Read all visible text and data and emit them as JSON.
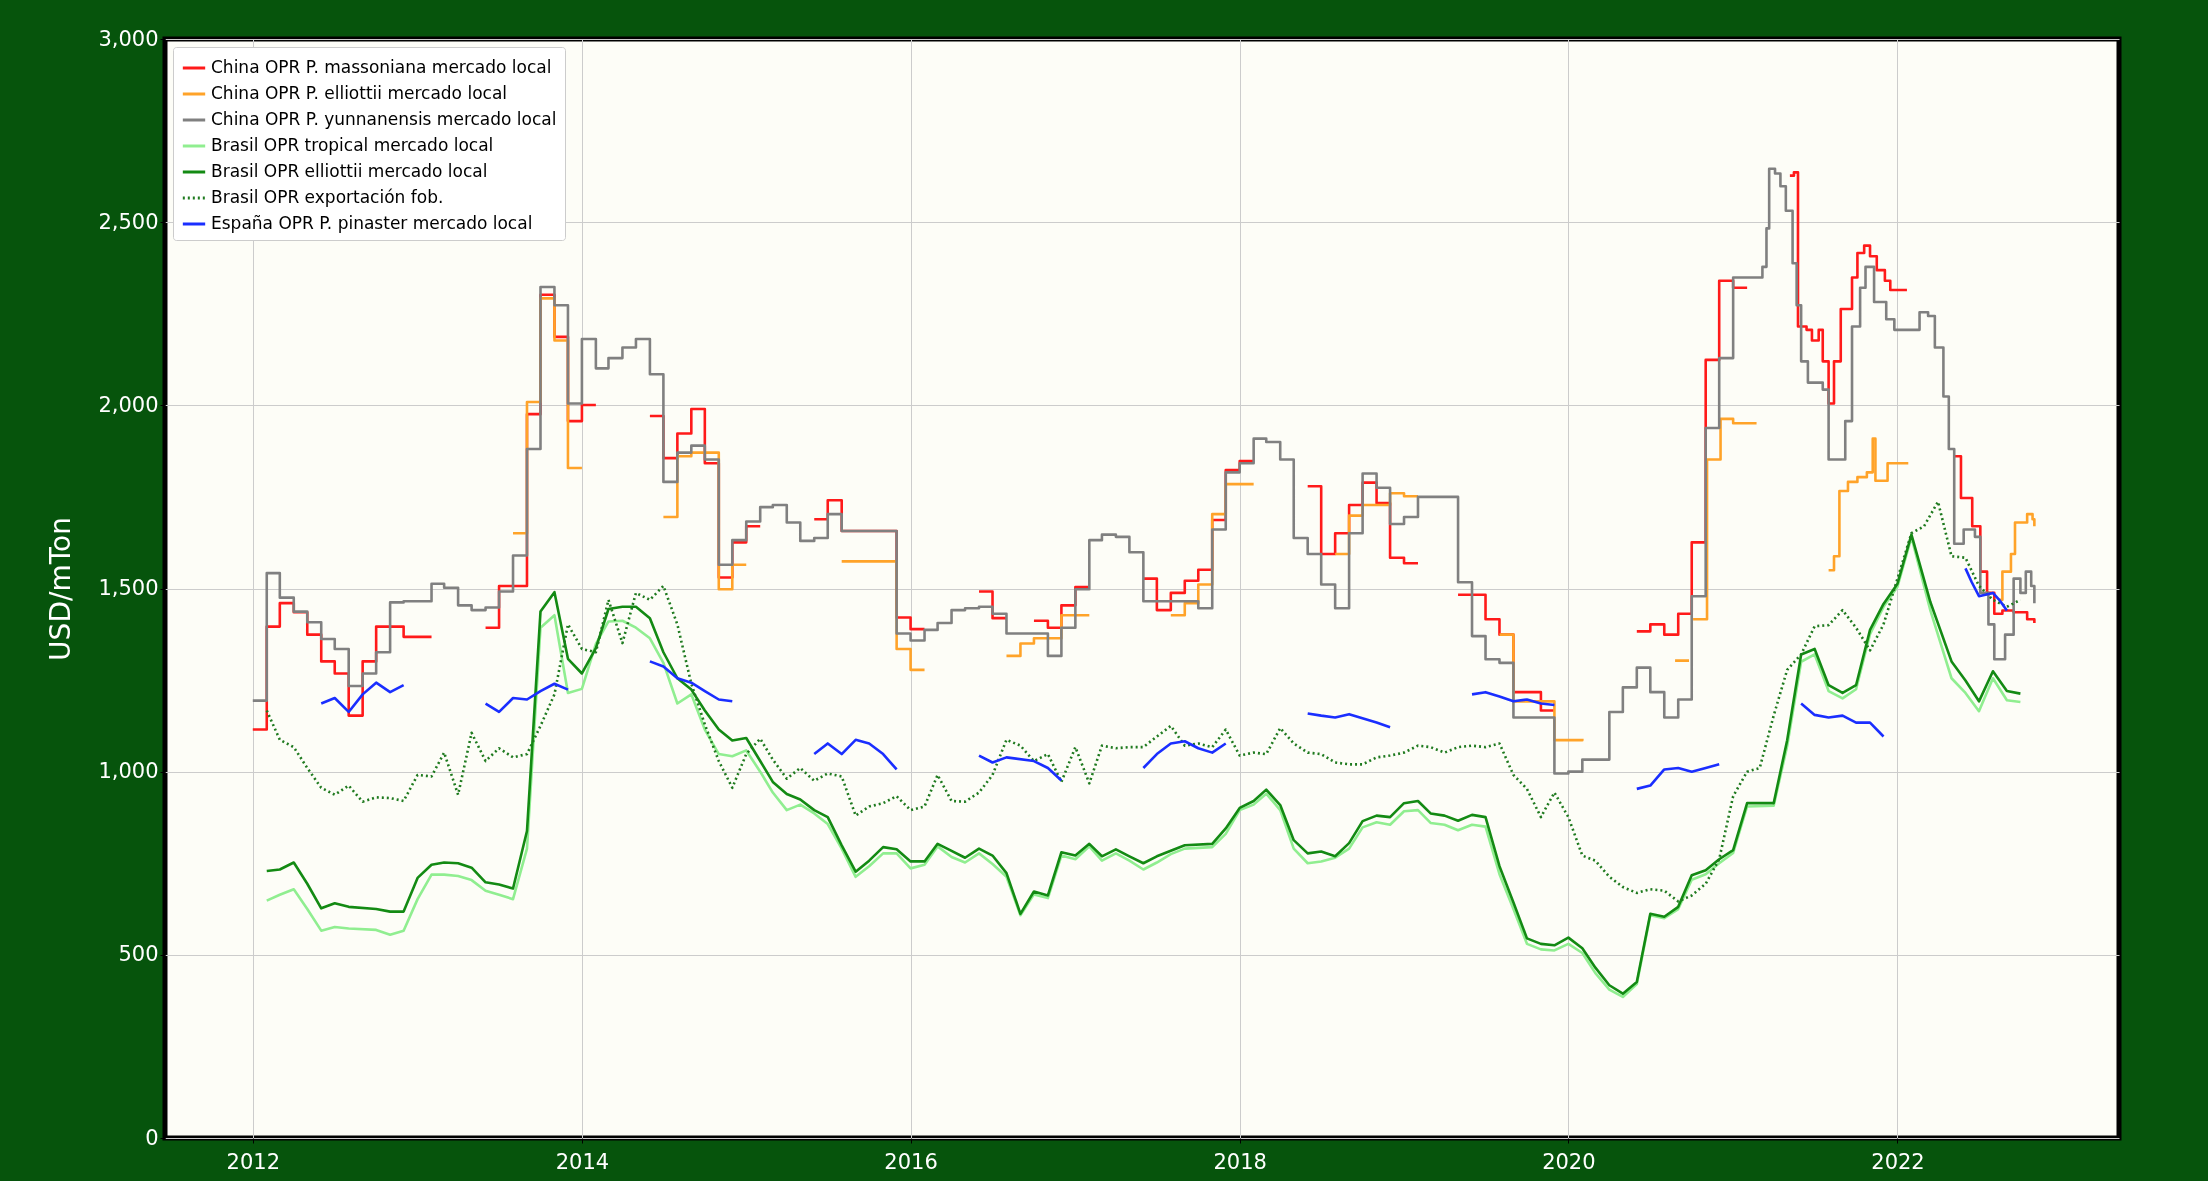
{
  "chart_data": {
    "type": "line",
    "ylabel": "USD/mTon",
    "grid": true,
    "legend": "top left",
    "xlim": [
      "2011-06-20",
      "2023-05-08"
    ],
    "xticks": [
      "2012",
      "2014",
      "2016",
      "2018",
      "2020",
      "2022"
    ],
    "ylim": [
      0,
      3000
    ],
    "yticks": [
      {
        "value": 0,
        "label": "0"
      },
      {
        "value": 500,
        "label": "500"
      },
      {
        "value": 1000,
        "label": "1,000"
      },
      {
        "value": 1500,
        "label": "1,500"
      },
      {
        "value": 2000,
        "label": "2,000"
      },
      {
        "value": 2500,
        "label": "2,500"
      },
      {
        "value": 3000,
        "label": "3,000"
      }
    ],
    "series": [
      {
        "name": "China OPR P. massoniana mercado local",
        "color": "#ff1a1a",
        "type": "step",
        "line_style": "solid",
        "x": [
          "2012-01",
          "2012-02",
          "2012-03",
          "2012-04",
          "2012-05",
          "2012-06",
          "2012-07",
          "2012-08",
          "2012-09",
          "2012-10",
          "2012-12",
          "2013-02",
          "2013-03",
          "2013-06",
          "2013-07",
          "2013-09",
          "2013-10",
          "2013-11",
          "2013-12",
          "2014-01",
          "2014-02",
          "2014-03",
          "2014-06",
          "2014-07",
          "2014-08",
          "2014-09",
          "2014-10",
          "2014-11",
          "2014-12",
          "2015-01",
          "2015-02",
          "2015-04",
          "2015-06",
          "2015-07",
          "2015-08",
          "2015-12",
          "2016-01",
          "2016-02",
          "2016-03",
          "2016-06",
          "2016-07",
          "2016-08",
          "2016-09",
          "2016-10",
          "2016-11",
          "2016-12",
          "2017-01",
          "2017-02",
          "2017-04",
          "2017-06",
          "2017-07",
          "2017-08",
          "2017-09",
          "2017-10",
          "2017-11",
          "2017-12",
          "2018-01",
          "2018-02",
          "2018-04",
          "2018-06",
          "2018-07",
          "2018-08",
          "2018-09",
          "2018-10",
          "2018-11",
          "2018-12",
          "2019-01",
          "2019-02",
          "2019-04",
          "2019-05",
          "2019-07",
          "2019-08",
          "2019-09",
          "2019-11",
          "2019-12",
          "2020-03",
          "2020-06",
          "2020-07",
          "2020-08",
          "2020-09",
          "2020-10",
          "2020-11",
          "2020-12",
          "2021-01",
          "2021-02",
          "2021-02-20",
          "2021-05-07",
          "2021-05-16",
          "2021-05-25",
          "2021-06-13",
          "2021-06-25",
          "2021-07-10",
          "2021-07-19",
          "2021-08-01",
          "2021-08-13",
          "2021-08-28",
          "2021-09-22",
          "2021-10-04",
          "2021-10-19",
          "2021-11-01",
          "2021-11-16",
          "2021-12-04",
          "2021-12-16",
          "2022-01-22",
          "2022-03-01",
          "2022-05-07",
          "2022-05-22",
          "2022-06-16",
          "2022-07-04",
          "2022-07-19",
          "2022-08-04",
          "2022-08-22",
          "2022-09-16",
          "2022-10-16",
          "2022-11-01"
        ],
        "values": [
          1115,
          1396,
          1460,
          1435,
          1374,
          1301,
          1268,
          1153,
          1301,
          1396,
          1368,
          1368,
          null,
          1393,
          1507,
          1976,
          2302,
          2187,
          1957,
          2001,
          2001,
          null,
          1971,
          1856,
          1923,
          1990,
          1842,
          1530,
          1626,
          1670,
          1670,
          null,
          1689,
          1741,
          1657,
          1421,
          1389,
          1389,
          null,
          1492,
          1419,
          1419,
          null,
          1412,
          1393,
          1454,
          1504,
          1504,
          null,
          1527,
          1441,
          1488,
          1521,
          1551,
          1687,
          1823,
          1848,
          1848,
          null,
          1779,
          1594,
          1651,
          1728,
          1789,
          1733,
          1584,
          1569,
          1569,
          null,
          1483,
          1416,
          1374,
          1217,
          1167,
          1167,
          null,
          1383,
          1402,
          1374,
          1431,
          1626,
          2124,
          2340,
          2321,
          2321,
          null,
          2627,
          2636,
          2215,
          2206,
          2177,
          2206,
          2120,
          2005,
          2120,
          2263,
          2349,
          2416,
          2436,
          2407,
          2369,
          2340,
          2315,
          2315,
          null,
          1861,
          1747,
          1670,
          1546,
          1488,
          1431,
          1440,
          1435,
          1416,
          1406
        ]
      },
      {
        "name": "China OPR P. elliottii mercado local",
        "color": "#ffa329",
        "type": "step",
        "line_style": "solid",
        "x": [
          "2013-08",
          "2013-09",
          "2013-10",
          "2013-11",
          "2013-12",
          "2014-01",
          "2014-02",
          "2014-07",
          "2014-08",
          "2014-09",
          "2014-11",
          "2014-12",
          "2015-01",
          "2015-03",
          "2015-08",
          "2015-12",
          "2016-01",
          "2016-02",
          "2016-04",
          "2016-08",
          "2016-09",
          "2016-10",
          "2016-12",
          "2017-02",
          "2017-04",
          "2017-08",
          "2017-09",
          "2017-10",
          "2017-11",
          "2017-12",
          "2018-02",
          "2018-04",
          "2018-08",
          "2018-09",
          "2018-10",
          "2018-12",
          "2019-01",
          "2019-02",
          "2019-04",
          "2019-08",
          "2019-09",
          "2019-12",
          "2020-02",
          "2020-04",
          "2020-08-25",
          "2020-09-25",
          "2020-10-01",
          "2020-10-04",
          "2020-11-04",
          "2020-12-04",
          "2021-01-01",
          "2021-02-22",
          "2021-03-15",
          "2021-08-01",
          "2021-08-13",
          "2021-08-25",
          "2021-09-13",
          "2021-10-04",
          "2021-10-25",
          "2021-11-07",
          "2021-11-13",
          "2021-12-10",
          "2022-01-25",
          "2022-03-01",
          "2022-08-13",
          "2022-08-22",
          "2022-09-10",
          "2022-09-19",
          "2022-10-04",
          "2022-10-16",
          "2022-10-28",
          "2022-11-01"
        ],
        "values": [
          1651,
          2009,
          2292,
          2177,
          1829,
          1829,
          null,
          1695,
          1861,
          1871,
          1498,
          1565,
          1565,
          null,
          1574,
          1335,
          1278,
          1278,
          null,
          1316,
          1350,
          1364,
          1427,
          1427,
          null,
          1427,
          1460,
          1511,
          1703,
          1785,
          1785,
          null,
          1594,
          1699,
          1728,
          1760,
          1752,
          1752,
          null,
          1374,
          1192,
          1086,
          1090,
          null,
          1303,
          1303,
          null,
          1416,
          1852,
          1963,
          1951,
          1951,
          null,
          1550,
          1588,
          1766,
          1791,
          1804,
          1817,
          1909,
          1794,
          1842,
          1842,
          null,
          1469,
          1546,
          1594,
          1680,
          1680,
          1703,
          1689,
          1670
        ]
      },
      {
        "name": "China OPR P. yunnanensis mercado local",
        "color": "#808080",
        "type": "step",
        "line_style": "solid",
        "x": [
          "2012-01",
          "2012-02",
          "2012-03",
          "2012-04",
          "2012-05",
          "2012-06",
          "2012-07",
          "2012-08",
          "2012-09",
          "2012-10",
          "2012-11",
          "2012-12",
          "2013-02",
          "2013-03",
          "2013-04",
          "2013-05",
          "2013-06",
          "2013-07",
          "2013-08",
          "2013-09",
          "2013-10",
          "2013-11",
          "2013-12",
          "2014-01",
          "2014-02",
          "2014-03",
          "2014-04",
          "2014-05",
          "2014-06",
          "2014-07",
          "2014-08",
          "2014-09",
          "2014-10",
          "2014-11",
          "2014-12",
          "2015-01",
          "2015-02",
          "2015-03",
          "2015-04",
          "2015-05",
          "2015-06",
          "2015-07",
          "2015-08",
          "2015-12",
          "2016-01",
          "2016-02",
          "2016-03",
          "2016-04",
          "2016-05",
          "2016-06",
          "2016-07",
          "2016-08",
          "2016-11",
          "2016-12",
          "2017-01",
          "2017-02",
          "2017-03",
          "2017-04",
          "2017-05",
          "2017-06",
          "2017-10",
          "2017-11",
          "2017-12",
          "2018-01",
          "2018-02",
          "2018-03",
          "2018-04",
          "2018-05",
          "2018-06",
          "2018-07",
          "2018-08",
          "2018-09",
          "2018-10",
          "2018-11",
          "2018-12",
          "2019-01",
          "2019-02",
          "2019-05",
          "2019-06",
          "2019-07",
          "2019-08",
          "2019-09",
          "2019-12",
          "2020-01",
          "2020-02",
          "2020-04",
          "2020-05",
          "2020-06",
          "2020-07",
          "2020-08",
          "2020-09",
          "2020-10",
          "2020-11",
          "2020-12",
          "2021-01",
          "2021-03-07",
          "2021-03-16",
          "2021-03-22",
          "2021-04-04",
          "2021-04-16",
          "2021-04-28",
          "2021-05-13",
          "2021-05-22",
          "2021-06-01",
          "2021-06-16",
          "2021-07-19",
          "2021-08-01",
          "2021-09-07",
          "2021-09-22",
          "2021-10-10",
          "2021-10-22",
          "2021-11-10",
          "2021-12-07",
          "2021-12-25",
          "2022-02-19",
          "2022-03-10",
          "2022-03-25",
          "2022-04-13",
          "2022-04-25",
          "2022-05-07",
          "2022-05-28",
          "2022-06-22",
          "2022-07-04",
          "2022-07-22",
          "2022-08-04",
          "2022-08-28",
          "2022-09-16",
          "2022-10-01",
          "2022-10-13",
          "2022-10-25",
          "2022-11-01"
        ],
        "values": [
          1194,
          1542,
          1475,
          1437,
          1408,
          1362,
          1335,
          1234,
          1268,
          1326,
          1462,
          1465,
          1513,
          1502,
          1454,
          1441,
          1448,
          1492,
          1590,
          1881,
          2323,
          2273,
          2005,
          2181,
          2101,
          2129,
          2158,
          2181,
          2085,
          1791,
          1871,
          1890,
          1852,
          1565,
          1632,
          1683,
          1722,
          1728,
          1680,
          1630,
          1638,
          1703,
          1657,
          1377,
          1358,
          1387,
          1406,
          1441,
          1446,
          1450,
          1431,
          1377,
          1316,
          1393,
          1498,
          1632,
          1647,
          1641,
          1599,
          1465,
          1446,
          1661,
          1817,
          1842,
          1909,
          1900,
          1852,
          1638,
          1594,
          1511,
          1446,
          1651,
          1814,
          1775,
          1676,
          1695,
          1750,
          1517,
          1370,
          1307,
          1297,
          1148,
          995,
          1000,
          1033,
          1163,
          1230,
          1284,
          1217,
          1148,
          1197,
          1479,
          1938,
          2129,
          2349,
          2378,
          2483,
          2646,
          2633,
          2598,
          2531,
          2388,
          2273,
          2120,
          2062,
          2043,
          1852,
          1957,
          2215,
          2321,
          2378,
          2282,
          2235,
          2206,
          2254,
          2244,
          2158,
          2024,
          1881,
          1622,
          1661,
          1641,
          1488,
          1402,
          1307,
          1374,
          1527,
          1488,
          1546,
          1507,
          1460
        ]
      },
      {
        "name": "Brasil OPR tropical mercado local",
        "color": "#90ee90",
        "type": "line",
        "line_style": "solid",
        "x": [
          "2012-02",
          "2012-03",
          "2012-04",
          "2012-05",
          "2012-06",
          "2012-07",
          "2012-08",
          "2012-10",
          "2012-11",
          "2012-12",
          "2013-01",
          "2013-02",
          "2013-03",
          "2013-04",
          "2013-05",
          "2013-06",
          "2013-07",
          "2013-08",
          "2013-09",
          "2013-10",
          "2013-11",
          "2013-12",
          "2014-01",
          "2014-02",
          "2014-03",
          "2014-04",
          "2014-05",
          "2014-06",
          "2014-07",
          "2014-08",
          "2014-09",
          "2014-10",
          "2014-11",
          "2014-12",
          "2015-01",
          "2015-02",
          "2015-03",
          "2015-04",
          "2015-05",
          "2015-06",
          "2015-07",
          "2015-08",
          "2015-09",
          "2015-10",
          "2015-11",
          "2015-12",
          "2016-01",
          "2016-02",
          "2016-03",
          "2016-04",
          "2016-05",
          "2016-06",
          "2016-07",
          "2016-08",
          "2016-09",
          "2016-10",
          "2016-11",
          "2016-12",
          "2017-01",
          "2017-02",
          "2017-03",
          "2017-04",
          "2017-05",
          "2017-06",
          "2017-07",
          "2017-08",
          "2017-09",
          "2017-11",
          "2017-12",
          "2018-01",
          "2018-02",
          "2018-03",
          "2018-04",
          "2018-05",
          "2018-06",
          "2018-07",
          "2018-08",
          "2018-09",
          "2018-10",
          "2018-11",
          "2018-12",
          "2019-01",
          "2019-02",
          "2019-03",
          "2019-04",
          "2019-05",
          "2019-06",
          "2019-07",
          "2019-08",
          "2019-09",
          "2019-10",
          "2019-11",
          "2019-12",
          "2020-01",
          "2020-02",
          "2020-03",
          "2020-04",
          "2020-05",
          "2020-06",
          "2020-07",
          "2020-08",
          "2020-09",
          "2020-10",
          "2020-11",
          "2020-12",
          "2021-01",
          "2021-02",
          "2021-04",
          "2021-05",
          "2021-06",
          "2021-07",
          "2021-08",
          "2021-09",
          "2021-10",
          "2021-11",
          "2021-12",
          "2022-01",
          "2022-02",
          "2022-03-15",
          "2022-05",
          "2022-06",
          "2022-07",
          "2022-08",
          "2022-09",
          "2022-10"
        ],
        "values": [
          648,
          664,
          679,
          625,
          566,
          576,
          572,
          568,
          555,
          566,
          652,
          719,
          719,
          715,
          704,
          675,
          664,
          652,
          790,
          1393,
          1427,
          1215,
          1226,
          1349,
          1410,
          1412,
          1393,
          1364,
          1297,
          1186,
          1211,
          1115,
          1048,
          1042,
          1058,
          1000,
          943,
          895,
          910,
          886,
          857,
          790,
          713,
          742,
          777,
          777,
          736,
          746,
          796,
          767,
          752,
          777,
          748,
          713,
          608,
          665,
          655,
          771,
          761,
          796,
          757,
          777,
          757,
          733,
          752,
          775,
          790,
          794,
          830,
          895,
          910,
          940,
          895,
          790,
          750,
          755,
          765,
          790,
          848,
          862,
          855,
          892,
          895,
          860,
          855,
          840,
          855,
          850,
          720,
          625,
          530,
          515,
          512,
          530,
          505,
          450,
          405,
          385,
          420,
          608,
          600,
          625,
          705,
          720,
          750,
          778,
          905,
          907,
          1070,
          1300,
          1320,
          1220,
          1200,
          1225,
          1375,
          1450,
          1505,
          1640,
          1440,
          1255,
          1215,
          1165,
          1255,
          1195,
          1190
        ]
      },
      {
        "name": "Brasil OPR elliottii mercado local",
        "color": "#138a13",
        "type": "line",
        "line_style": "solid",
        "x": [
          "2012-02",
          "2012-03",
          "2012-04",
          "2012-05",
          "2012-06",
          "2012-07",
          "2012-08",
          "2012-10",
          "2012-11",
          "2012-12",
          "2013-01",
          "2013-02",
          "2013-03",
          "2013-04",
          "2013-05",
          "2013-06",
          "2013-07",
          "2013-08",
          "2013-09",
          "2013-10",
          "2013-11",
          "2013-12",
          "2014-01",
          "2014-02",
          "2014-03",
          "2014-04",
          "2014-05",
          "2014-06",
          "2014-07",
          "2014-08",
          "2014-09",
          "2014-10",
          "2014-11",
          "2014-12",
          "2015-01",
          "2015-02",
          "2015-03",
          "2015-04",
          "2015-05",
          "2015-06",
          "2015-07",
          "2015-08",
          "2015-09",
          "2015-10",
          "2015-11",
          "2015-12",
          "2016-01",
          "2016-02",
          "2016-03",
          "2016-04",
          "2016-05",
          "2016-06",
          "2016-07",
          "2016-08",
          "2016-09",
          "2016-10",
          "2016-11",
          "2016-12",
          "2017-01",
          "2017-02",
          "2017-03",
          "2017-04",
          "2017-05",
          "2017-06",
          "2017-07",
          "2017-08",
          "2017-09",
          "2017-11",
          "2017-12",
          "2018-01",
          "2018-02",
          "2018-03",
          "2018-04",
          "2018-05",
          "2018-06",
          "2018-07",
          "2018-08",
          "2018-09",
          "2018-10",
          "2018-11",
          "2018-12",
          "2019-01",
          "2019-02",
          "2019-03",
          "2019-04",
          "2019-05",
          "2019-06",
          "2019-07",
          "2019-08",
          "2019-09",
          "2019-10",
          "2019-11",
          "2019-12",
          "2020-01",
          "2020-02",
          "2020-03",
          "2020-04",
          "2020-05",
          "2020-06",
          "2020-07",
          "2020-08",
          "2020-09",
          "2020-10",
          "2020-11",
          "2020-12",
          "2021-01",
          "2021-02",
          "2021-04",
          "2021-05",
          "2021-06",
          "2021-07",
          "2021-08",
          "2021-09",
          "2021-10",
          "2021-11",
          "2021-12",
          "2022-01",
          "2022-02",
          "2022-03-15",
          "2022-05",
          "2022-06",
          "2022-07",
          "2022-08",
          "2022-09",
          "2022-10"
        ],
        "values": [
          729,
          733,
          752,
          694,
          627,
          641,
          631,
          625,
          618,
          618,
          710,
          746,
          752,
          750,
          738,
          698,
          692,
          681,
          838,
          1437,
          1490,
          1308,
          1268,
          1337,
          1444,
          1450,
          1450,
          1419,
          1326,
          1255,
          1224,
          1167,
          1115,
          1085,
          1092,
          1029,
          972,
          939,
          924,
          895,
          876,
          799,
          727,
          757,
          794,
          788,
          755,
          755,
          803,
          784,
          765,
          790,
          771,
          723,
          612,
          673,
          662,
          780,
          771,
          803,
          769,
          788,
          769,
          750,
          769,
          784,
          799,
          803,
          845,
          901,
          920,
          951,
          909,
          813,
          777,
          782,
          769,
          805,
          865,
          880,
          876,
          914,
          920,
          886,
          880,
          866,
          882,
          876,
          742,
          643,
          545,
          530,
          526,
          547,
          518,
          465,
          417,
          394,
          426,
          612,
          604,
          631,
          717,
          731,
          761,
          786,
          914,
          914,
          1086,
          1320,
          1335,
          1236,
          1215,
          1236,
          1387,
          1458,
          1513,
          1647,
          1463,
          1301,
          1249,
          1192,
          1274,
          1220,
          1213
        ]
      },
      {
        "name": "Brasil OPR exportación fob.",
        "color": "#1f7a1f",
        "type": "line",
        "line_style": "dotted",
        "x": [
          "2012-02",
          "2012-03",
          "2012-04",
          "2012-05",
          "2012-06",
          "2012-07",
          "2012-08",
          "2012-09",
          "2012-10",
          "2012-11",
          "2012-12",
          "2013-01",
          "2013-02",
          "2013-03",
          "2013-04",
          "2013-05",
          "2013-06",
          "2013-07",
          "2013-08",
          "2013-09",
          "2013-10",
          "2013-11",
          "2013-12",
          "2014-01",
          "2014-02",
          "2014-03",
          "2014-04",
          "2014-05",
          "2014-06",
          "2014-07",
          "2014-08",
          "2014-09",
          "2014-10",
          "2014-11",
          "2014-12",
          "2015-01",
          "2015-02",
          "2015-03",
          "2015-04",
          "2015-05",
          "2015-06",
          "2015-07",
          "2015-08",
          "2015-09",
          "2015-10",
          "2015-11",
          "2015-12",
          "2016-01",
          "2016-02",
          "2016-03",
          "2016-04",
          "2016-05",
          "2016-06",
          "2016-07",
          "2016-08",
          "2016-09",
          "2016-10",
          "2016-11",
          "2016-12",
          "2017-01",
          "2017-02",
          "2017-03",
          "2017-04",
          "2017-05",
          "2017-06",
          "2017-07",
          "2017-08",
          "2017-09",
          "2017-10",
          "2017-11",
          "2017-12",
          "2018-01",
          "2018-02",
          "2018-03",
          "2018-04",
          "2018-05",
          "2018-06",
          "2018-07",
          "2018-08",
          "2018-09",
          "2018-10",
          "2018-11",
          "2018-12",
          "2019-01",
          "2019-02",
          "2019-03",
          "2019-04",
          "2019-05",
          "2019-06",
          "2019-07",
          "2019-08",
          "2019-09",
          "2019-10",
          "2019-11",
          "2019-12",
          "2020-01",
          "2020-02",
          "2020-03",
          "2020-04",
          "2020-05",
          "2020-06",
          "2020-07",
          "2020-08",
          "2020-09",
          "2020-10",
          "2020-11",
          "2020-12",
          "2021-01",
          "2021-02",
          "2021-03",
          "2021-04",
          "2021-05",
          "2021-06",
          "2021-07",
          "2021-08",
          "2021-09",
          "2021-10",
          "2021-11",
          "2021-12",
          "2022-01",
          "2022-02",
          "2022-03",
          "2022-04",
          "2022-05",
          "2022-06",
          "2022-07",
          "2022-08",
          "2022-09",
          "2022-10"
        ],
        "values": [
          1167,
          1087,
          1067,
          1010,
          956,
          937,
          962,
          918,
          930,
          928,
          920,
          991,
          987,
          1052,
          937,
          1106,
          1029,
          1064,
          1039,
          1048,
          1125,
          1211,
          1402,
          1335,
          1326,
          1469,
          1351,
          1488,
          1469,
          1507,
          1402,
          1240,
          1129,
          1029,
          956,
          1048,
          1090,
          1033,
          981,
          1010,
          975,
          995,
          987,
          880,
          905,
          914,
          933,
          895,
          905,
          991,
          920,
          918,
          943,
          991,
          1087,
          1071,
          1029,
          1048,
          972,
          1067,
          968,
          1071,
          1064,
          1067,
          1067,
          1096,
          1125,
          1071,
          1077,
          1067,
          1115,
          1044,
          1052,
          1048,
          1119,
          1077,
          1052,
          1048,
          1025,
          1020,
          1020,
          1039,
          1044,
          1052,
          1071,
          1067,
          1052,
          1067,
          1071,
          1067,
          1077,
          991,
          953,
          876,
          943,
          876,
          771,
          757,
          713,
          685,
          669,
          679,
          675,
          646,
          662,
          694,
          761,
          933,
          1000,
          1010,
          1153,
          1278,
          1320,
          1397,
          1400,
          1441,
          1393,
          1331,
          1402,
          1527,
          1651,
          1670,
          1737,
          1588,
          1584,
          1507,
          1469,
          1450,
          1469
        ]
      },
      {
        "name": "España OPR P. pinaster mercado local",
        "color": "#1a2eff",
        "type": "line",
        "line_style": "solid",
        "x": [
          "2012-06",
          "2012-07",
          "2012-08",
          "2012-09",
          "2012-10",
          "2012-11",
          "2012-12",
          "2013-03",
          "2013-06",
          "2013-07",
          "2013-08",
          "2013-09",
          "2013-10",
          "2013-11",
          "2013-12",
          "2014-03",
          "2014-06",
          "2014-07",
          "2014-08",
          "2014-09",
          "2014-10",
          "2014-11",
          "2014-12",
          "2015-03",
          "2015-06",
          "2015-07",
          "2015-08",
          "2015-09",
          "2015-10",
          "2015-11",
          "2015-12",
          "2016-03",
          "2016-06",
          "2016-07",
          "2016-08",
          "2016-10",
          "2016-11",
          "2016-12",
          "2017-03",
          "2017-06",
          "2017-07",
          "2017-08",
          "2017-09",
          "2017-10",
          "2017-11",
          "2017-12",
          "2018-03",
          "2018-06",
          "2018-07",
          "2018-08",
          "2018-09",
          "2018-11",
          "2018-12",
          "2019-03",
          "2019-06",
          "2019-07",
          "2019-08",
          "2019-09",
          "2019-10",
          "2019-11",
          "2019-12",
          "2020-03",
          "2020-06",
          "2020-07",
          "2020-08",
          "2020-09",
          "2020-10",
          "2020-11",
          "2020-12",
          "2021-03",
          "2021-06",
          "2021-07",
          "2021-08",
          "2021-09",
          "2021-10",
          "2021-11",
          "2021-12",
          "2022-03",
          "2022-06",
          "2022-06-15",
          "2022-07",
          "2022-08",
          "2022-08-15",
          "2022-09"
        ],
        "values": [
          1186,
          1201,
          1163,
          1211,
          1243,
          1217,
          1236,
          null,
          1186,
          1163,
          1201,
          1197,
          1220,
          1240,
          1224,
          null,
          1301,
          1287,
          1255,
          1243,
          1220,
          1197,
          1192,
          null,
          1048,
          1077,
          1048,
          1087,
          1077,
          1048,
          1006,
          null,
          1044,
          1025,
          1039,
          1029,
          1010,
          976,
          null,
          1010,
          1048,
          1077,
          1083,
          1064,
          1052,
          1077,
          null,
          1159,
          1153,
          1148,
          1157,
          1134,
          1121,
          null,
          1211,
          1217,
          1205,
          1192,
          1197,
          1186,
          1182,
          null,
          953,
          962,
          1006,
          1010,
          1000,
          1010,
          1020,
          null,
          1186,
          1155,
          1148,
          1153,
          1134,
          1134,
          1096,
          null,
          1555,
          1517,
          1479,
          1488,
          1469,
          1440
        ]
      }
    ]
  }
}
